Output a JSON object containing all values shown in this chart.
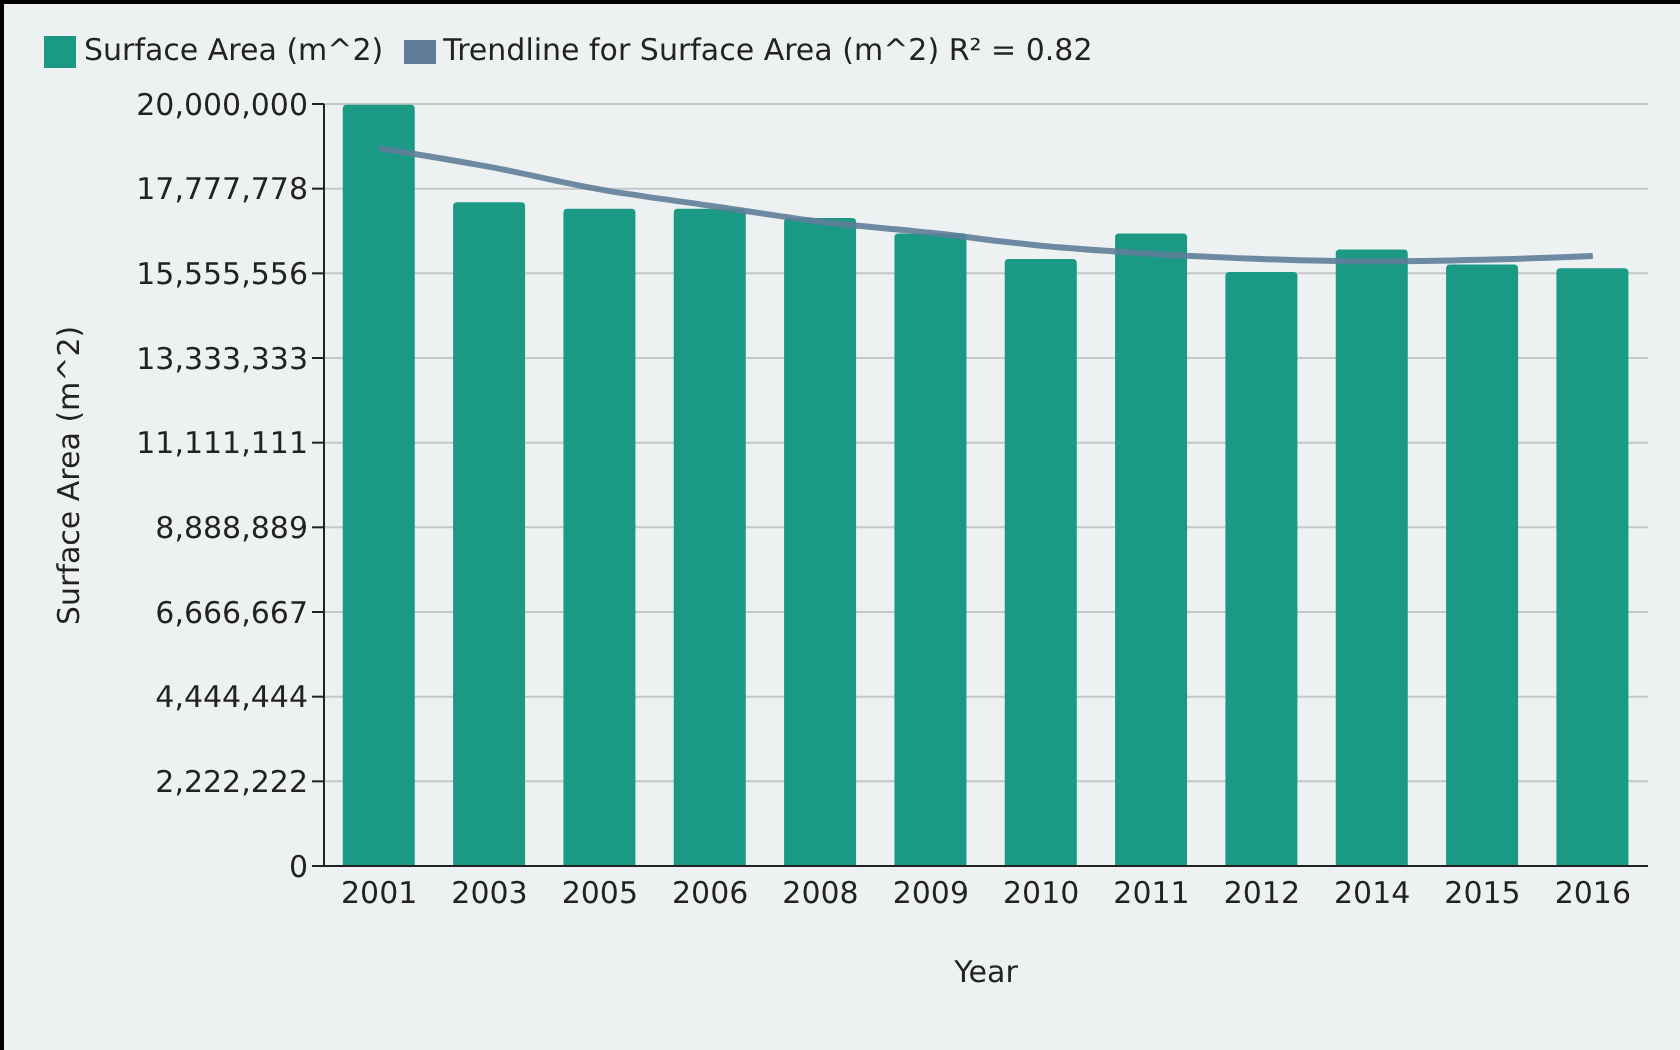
{
  "chart_data": {
    "type": "bar",
    "xlabel": "Year",
    "ylabel": "Surface Area (m^2)",
    "categories": [
      "2001",
      "2003",
      "2005",
      "2006",
      "2008",
      "2009",
      "2010",
      "2011",
      "2012",
      "2014",
      "2015",
      "2016"
    ],
    "series": [
      {
        "name": "Surface Area (m^2)",
        "color": "#1a9985",
        "values": [
          19980000,
          17420000,
          17250000,
          17250000,
          17010000,
          16600000,
          15930000,
          16600000,
          15590000,
          16180000,
          15790000,
          15690000
        ]
      },
      {
        "name": "Trendline for Surface Area (m^2) R² = 0.82",
        "type": "line",
        "color": "#5f7d99",
        "values": [
          18840000,
          18350000,
          17760000,
          17330000,
          16910000,
          16620000,
          16280000,
          16070000,
          15930000,
          15870000,
          15910000,
          16010000
        ]
      }
    ],
    "ylim": [
      0,
      20000000
    ],
    "yticks": [
      0,
      {
        "value": 2222222,
        "label": "2,222,222"
      },
      {
        "value": 4444444,
        "label": "4,444,444"
      },
      {
        "value": 6666667,
        "label": "6,666,667"
      },
      {
        "value": 8888889,
        "label": "8,888,889"
      },
      {
        "value": 11111111,
        "label": "11,111,111"
      },
      {
        "value": 13333333,
        "label": "13,333,333"
      },
      {
        "value": 15555556,
        "label": "15,555,556"
      },
      {
        "value": 17777778,
        "label": "17,777,778"
      },
      {
        "value": 20000000,
        "label": "20,000,000"
      }
    ],
    "grid": "y",
    "legend": "top left",
    "marker": "none",
    "line_style": "solid"
  }
}
